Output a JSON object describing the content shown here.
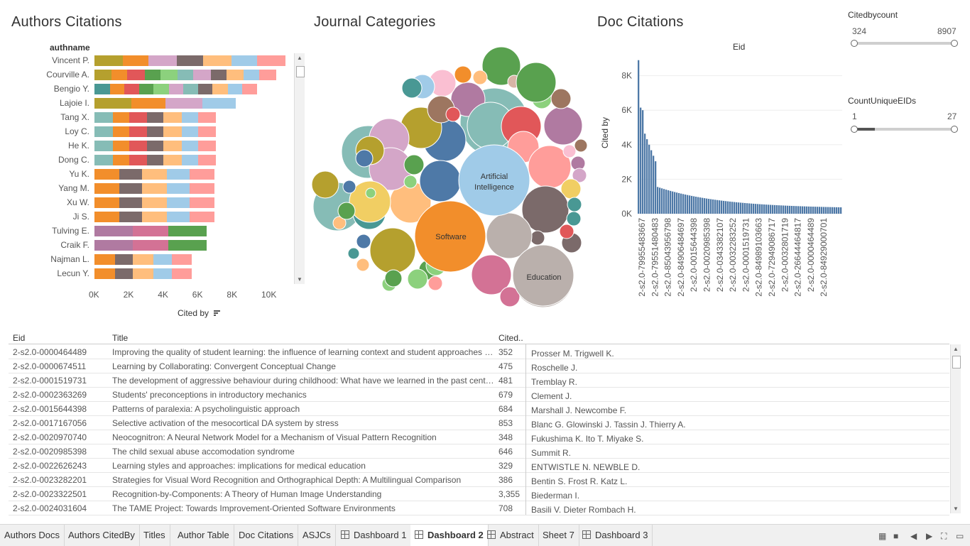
{
  "authors_chart": {
    "title": "Authors Citations",
    "column_header": "authname",
    "x_axis_label": "Cited by",
    "x_ticks": [
      "0K",
      "2K",
      "4K",
      "6K",
      "8K",
      "10K"
    ],
    "authors": [
      {
        "name": "Vincent P.",
        "total": 11000
      },
      {
        "name": "Courville A.",
        "total": 10500
      },
      {
        "name": "Bengio Y.",
        "total": 9400
      },
      {
        "name": "Lajoie I.",
        "total": 8200
      },
      {
        "name": "Tang X.",
        "total": 7000
      },
      {
        "name": "Loy C.",
        "total": 7000
      },
      {
        "name": "He K.",
        "total": 7000
      },
      {
        "name": "Dong C.",
        "total": 7000
      },
      {
        "name": "Yu K.",
        "total": 6900
      },
      {
        "name": "Yang M.",
        "total": 6900
      },
      {
        "name": "Xu W.",
        "total": 6900
      },
      {
        "name": "Ji S.",
        "total": 6900
      },
      {
        "name": "Tulving E.",
        "total": 6400
      },
      {
        "name": "Craik F.",
        "total": 6400
      },
      {
        "name": "Najman L.",
        "total": 5600
      },
      {
        "name": "Lecun Y.",
        "total": 5600
      }
    ]
  },
  "journal_categories": {
    "title": "Journal Categories",
    "labels": [
      "Artificial Intelligence",
      "Software",
      "Education"
    ]
  },
  "doc_chart": {
    "title": "Doc Citations",
    "x_header": "Eid",
    "y_label": "Cited by",
    "y_ticks": [
      "8K",
      "6K",
      "4K",
      "2K",
      "0K"
    ],
    "x_ticks": [
      "2-s2.0-79955483667",
      "2-s2.0-79551480483",
      "2-s2.0-85043956798",
      "2-s2.0-84906484697",
      "2-s2.0-0015644398",
      "2-s2.0-0020985398",
      "2-s2.0-0343382107",
      "2-s2.0-0032283252",
      "2-s2.0-0001519731",
      "2-s2.0-84989103663",
      "2-s2.0-72949086717",
      "2-s2.0-0032801719",
      "2-s2.0-26644464817",
      "2-s2.0-0000464489",
      "2-s2.0-84929000701"
    ]
  },
  "filters": {
    "citedby": {
      "title": "Citedbycount",
      "min": "324",
      "max": "8907"
    },
    "unique": {
      "title": "CountUniqueEIDs",
      "min": "1",
      "max": "27"
    }
  },
  "table": {
    "headers": {
      "eid": "Eid",
      "title": "Title",
      "cited": "Cited.."
    },
    "rows": [
      {
        "eid": "2-s2.0-0000464489",
        "title": "Improving the quality of student learning: the influence of learning context and student approaches to study",
        "cited": "352",
        "authors": "Prosser M.   Trigwell K."
      },
      {
        "eid": "2-s2.0-0000674511",
        "title": "Learning by Collaborating: Convergent Conceptual Change",
        "cited": "475",
        "authors": "Roschelle J."
      },
      {
        "eid": "2-s2.0-0001519731",
        "title": "The development of aggressive behaviour during childhood: What have we learned in the past century?",
        "cited": "481",
        "authors": "Tremblay R."
      },
      {
        "eid": "2-s2.0-0002363269",
        "title": "Students' preconceptions in introductory mechanics",
        "cited": "679",
        "authors": "Clement J."
      },
      {
        "eid": "2-s2.0-0015644398",
        "title": "Patterns of paralexia: A psycholinguistic approach",
        "cited": "684",
        "authors": "Marshall J.   Newcombe F."
      },
      {
        "eid": "2-s2.0-0017167056",
        "title": "Selective activation of the mesocortical DA system by stress",
        "cited": "853",
        "authors": "Blanc G.   Glowinski J.   Tassin J.   Thierry A."
      },
      {
        "eid": "2-s2.0-0020970740",
        "title": "Neocognitron: A Neural Network Model for a Mechanism of Visual Pattern Recognition",
        "cited": "348",
        "authors": "Fukushima K.   Ito T.   Miyake S."
      },
      {
        "eid": "2-s2.0-0020985398",
        "title": "The child sexual abuse accomodation syndrome",
        "cited": "646",
        "authors": "Summit R."
      },
      {
        "eid": "2-s2.0-0022626243",
        "title": "Learning styles and approaches: implications for medical education",
        "cited": "329",
        "authors": "ENTWISTLE N.   NEWBLE D."
      },
      {
        "eid": "2-s2.0-0023282201",
        "title": "Strategies for Visual Word Recognition and Orthographical Depth: A Multilingual Comparison",
        "cited": "386",
        "authors": "Bentin S.   Frost R.   Katz L."
      },
      {
        "eid": "2-s2.0-0023322501",
        "title": "Recognition-by-Components: A Theory of Human Image Understanding",
        "cited": "3,355",
        "authors": "Biederman I."
      },
      {
        "eid": "2-s2.0-0024031604",
        "title": "The TAME Project: Towards Improvement-Oriented Software Environments",
        "cited": "708",
        "authors": "Basili V.   Dieter Rombach H."
      }
    ]
  },
  "tabs": [
    {
      "label": "Authors Docs",
      "icon": false
    },
    {
      "label": "Authors CitedBy",
      "icon": false
    },
    {
      "label": "Titles",
      "icon": false
    },
    {
      "label": "Author Table",
      "icon": false
    },
    {
      "label": "Doc Citations",
      "icon": false
    },
    {
      "label": "ASJCs",
      "icon": false
    },
    {
      "label": "Dashboard 1",
      "icon": true
    },
    {
      "label": "Dashboard 2",
      "icon": true,
      "active": true
    },
    {
      "label": "Abstract",
      "icon": true
    },
    {
      "label": "Sheet 7",
      "icon": false
    },
    {
      "label": "Dashboard 3",
      "icon": true
    }
  ],
  "colors": {
    "palette": [
      "#b5a02e",
      "#f28e2b",
      "#7b6a6a",
      "#ffbe7d",
      "#a0cbe8",
      "#ff9d9a",
      "#d4a6c8",
      "#e15759",
      "#59a14f",
      "#8cd17d",
      "#86bcb6",
      "#499894",
      "#f1ce63",
      "#4e79a7",
      "#b07aa1",
      "#bab0ac",
      "#d37295",
      "#fabfd2",
      "#9d7660",
      "#d7b5a6"
    ],
    "doc_bars": "#4e79a7"
  }
}
